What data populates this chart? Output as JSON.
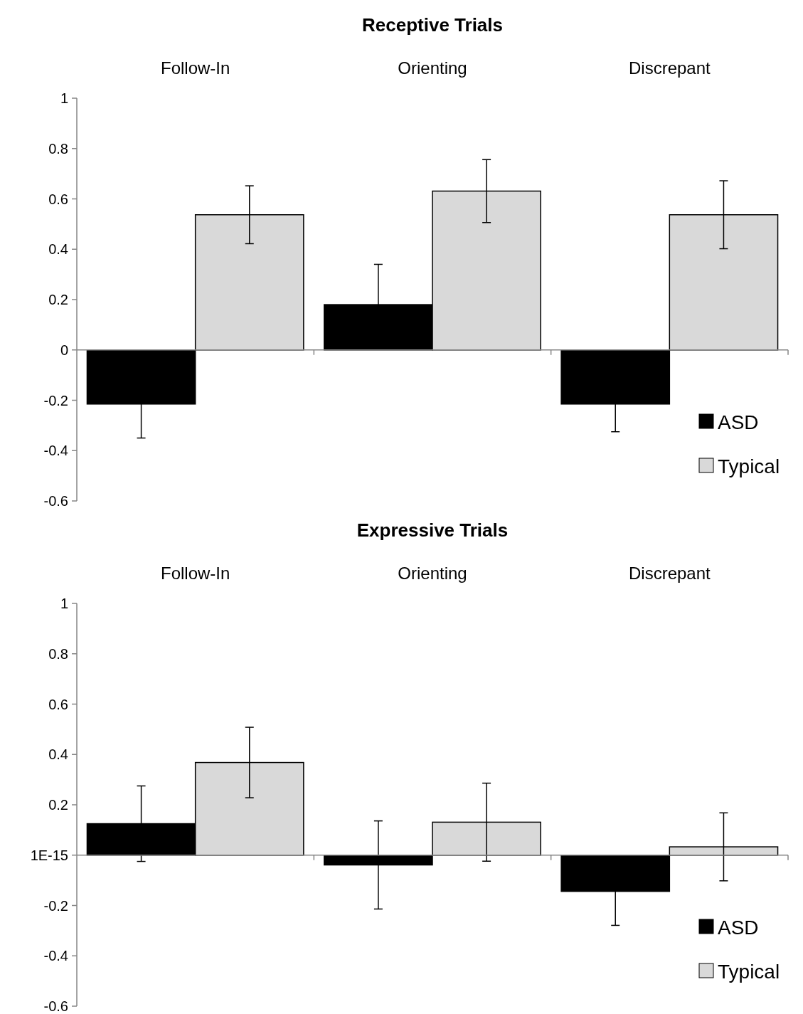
{
  "chart_data": [
    {
      "type": "bar",
      "title": "Receptive Trials",
      "categories": [
        "Follow-In",
        "Orienting",
        "Discrepant"
      ],
      "series": [
        {
          "name": "ASD",
          "color": "#000000",
          "values": [
            -0.215,
            0.18,
            -0.215
          ],
          "errors": [
            0.135,
            0.16,
            0.11
          ]
        },
        {
          "name": "Typical",
          "color": "#d9d9d9",
          "values": [
            0.537,
            0.631,
            0.537
          ],
          "errors": [
            0.115,
            0.125,
            0.135
          ]
        }
      ],
      "ylim": [
        -0.6,
        1
      ],
      "yticks": [
        -0.6,
        -0.4,
        -0.2,
        0,
        0.2,
        0.4,
        0.6,
        0.8,
        1
      ],
      "legend": "bottom right"
    },
    {
      "type": "bar",
      "title": "Expressive Trials",
      "categories": [
        "Follow-In",
        "Orienting",
        "Discrepant"
      ],
      "series": [
        {
          "name": "ASD",
          "color": "#000000",
          "values": [
            0.125,
            -0.039,
            -0.144
          ],
          "errors": [
            0.15,
            0.175,
            0.135
          ]
        },
        {
          "name": "Typical",
          "color": "#d9d9d9",
          "values": [
            0.368,
            0.131,
            0.033
          ],
          "errors": [
            0.14,
            0.155,
            0.135
          ]
        }
      ],
      "ylim": [
        -0.6,
        1
      ],
      "yticks": [
        -0.6,
        -0.4,
        -0.2,
        {
          "value": 0,
          "label": "1E-15"
        },
        0.2,
        0.4,
        0.6,
        0.8,
        1
      ],
      "legend": "bottom right"
    }
  ]
}
